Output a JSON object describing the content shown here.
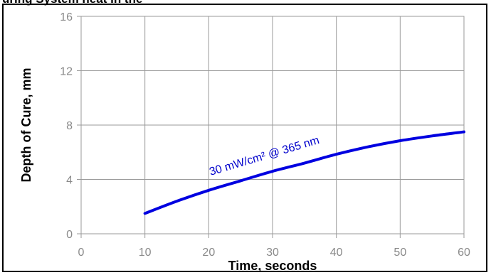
{
  "chart_data": {
    "type": "line",
    "title": "uring System heat in the",
    "xlabel": "Time, seconds",
    "ylabel": "Depth of Cure, mm",
    "xlim": [
      0,
      60
    ],
    "ylim": [
      0,
      16
    ],
    "x_ticks": [
      "0",
      "10",
      "20",
      "30",
      "40",
      "50",
      "60"
    ],
    "y_ticks": [
      "0",
      "4",
      "8",
      "12",
      "16"
    ],
    "grid": true,
    "series": [
      {
        "name": "30 mW/cm²  @ 365 nm",
        "color": "#0000e0",
        "x": [
          10,
          15,
          20,
          25,
          30,
          35,
          40,
          45,
          50,
          55,
          60
        ],
        "y": [
          1.5,
          2.4,
          3.2,
          3.9,
          4.6,
          5.2,
          5.85,
          6.4,
          6.85,
          7.2,
          7.5
        ]
      }
    ]
  }
}
